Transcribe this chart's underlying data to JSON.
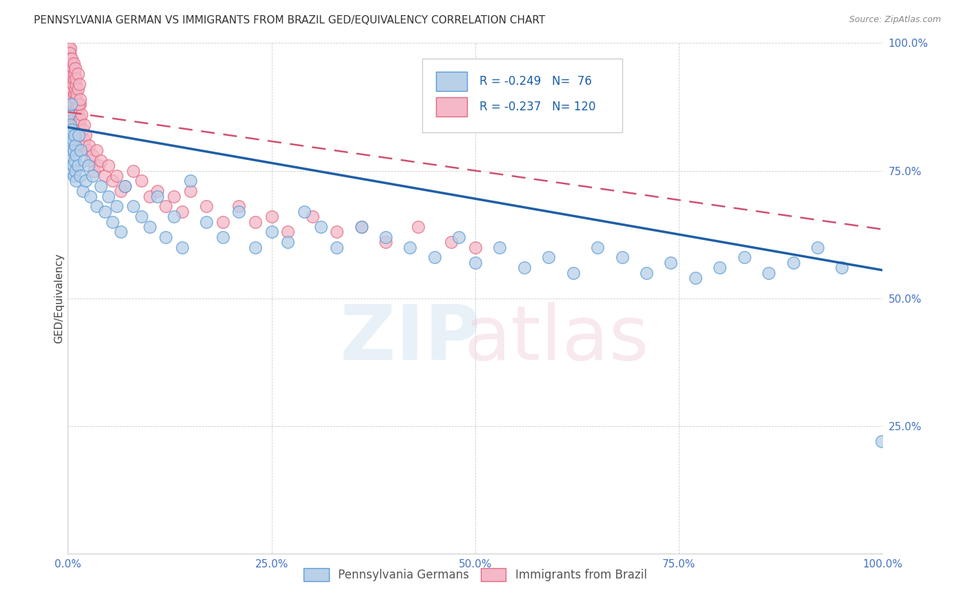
{
  "title": "PENNSYLVANIA GERMAN VS IMMIGRANTS FROM BRAZIL GED/EQUIVALENCY CORRELATION CHART",
  "source": "Source: ZipAtlas.com",
  "ylabel": "GED/Equivalency",
  "xlim": [
    0,
    1.0
  ],
  "ylim": [
    0,
    1.0
  ],
  "xticks": [
    0.0,
    0.25,
    0.5,
    0.75,
    1.0
  ],
  "xticklabels": [
    "0.0%",
    "25.0%",
    "50.0%",
    "75.0%",
    "100.0%"
  ],
  "yticks": [
    0.0,
    0.25,
    0.5,
    0.75,
    1.0
  ],
  "yticklabels": [
    "",
    "25.0%",
    "50.0%",
    "75.0%",
    "100.0%"
  ],
  "blue_R": -0.249,
  "blue_N": 76,
  "pink_R": -0.237,
  "pink_N": 120,
  "blue_color": "#b8d0e8",
  "blue_edge": "#5b9bd5",
  "pink_color": "#f4b8c8",
  "pink_edge": "#e06880",
  "line_blue": "#1f5fa6",
  "line_pink": "#d05070",
  "title_fontsize": 11,
  "source_fontsize": 9,
  "blue_line_start_y": 0.835,
  "blue_line_end_y": 0.555,
  "pink_line_start_y": 0.865,
  "pink_line_end_y": 0.635,
  "blue_scatter_x": [
    0.001,
    0.002,
    0.002,
    0.003,
    0.003,
    0.004,
    0.004,
    0.005,
    0.005,
    0.006,
    0.006,
    0.007,
    0.007,
    0.008,
    0.008,
    0.009,
    0.009,
    0.01,
    0.01,
    0.012,
    0.013,
    0.015,
    0.016,
    0.018,
    0.02,
    0.022,
    0.025,
    0.028,
    0.03,
    0.035,
    0.04,
    0.045,
    0.05,
    0.055,
    0.06,
    0.065,
    0.07,
    0.08,
    0.09,
    0.1,
    0.11,
    0.12,
    0.13,
    0.14,
    0.15,
    0.17,
    0.19,
    0.21,
    0.23,
    0.25,
    0.27,
    0.29,
    0.31,
    0.33,
    0.36,
    0.39,
    0.42,
    0.45,
    0.48,
    0.5,
    0.53,
    0.56,
    0.59,
    0.62,
    0.65,
    0.68,
    0.71,
    0.74,
    0.77,
    0.8,
    0.83,
    0.86,
    0.89,
    0.92,
    0.95,
    0.999
  ],
  "blue_scatter_y": [
    0.86,
    0.82,
    0.78,
    0.8,
    0.84,
    0.75,
    0.88,
    0.79,
    0.83,
    0.76,
    0.81,
    0.74,
    0.79,
    0.77,
    0.82,
    0.75,
    0.8,
    0.78,
    0.73,
    0.76,
    0.82,
    0.74,
    0.79,
    0.71,
    0.77,
    0.73,
    0.76,
    0.7,
    0.74,
    0.68,
    0.72,
    0.67,
    0.7,
    0.65,
    0.68,
    0.63,
    0.72,
    0.68,
    0.66,
    0.64,
    0.7,
    0.62,
    0.66,
    0.6,
    0.73,
    0.65,
    0.62,
    0.67,
    0.6,
    0.63,
    0.61,
    0.67,
    0.64,
    0.6,
    0.64,
    0.62,
    0.6,
    0.58,
    0.62,
    0.57,
    0.6,
    0.56,
    0.58,
    0.55,
    0.6,
    0.58,
    0.55,
    0.57,
    0.54,
    0.56,
    0.58,
    0.55,
    0.57,
    0.6,
    0.56,
    0.22
  ],
  "pink_scatter_x": [
    0.0005,
    0.001,
    0.001,
    0.001,
    0.001,
    0.002,
    0.002,
    0.002,
    0.002,
    0.002,
    0.003,
    0.003,
    0.003,
    0.003,
    0.003,
    0.004,
    0.004,
    0.004,
    0.004,
    0.005,
    0.005,
    0.005,
    0.005,
    0.006,
    0.006,
    0.006,
    0.006,
    0.007,
    0.007,
    0.007,
    0.007,
    0.008,
    0.008,
    0.008,
    0.009,
    0.009,
    0.009,
    0.01,
    0.01,
    0.01,
    0.011,
    0.012,
    0.012,
    0.013,
    0.013,
    0.014,
    0.015,
    0.015,
    0.016,
    0.017,
    0.018,
    0.019,
    0.02,
    0.02,
    0.022,
    0.024,
    0.026,
    0.028,
    0.03,
    0.032,
    0.035,
    0.038,
    0.04,
    0.045,
    0.05,
    0.055,
    0.06,
    0.065,
    0.07,
    0.08,
    0.09,
    0.1,
    0.11,
    0.12,
    0.13,
    0.14,
    0.15,
    0.17,
    0.19,
    0.21,
    0.23,
    0.25,
    0.27,
    0.3,
    0.33,
    0.36,
    0.39,
    0.43,
    0.47,
    0.5,
    0.001,
    0.001,
    0.002,
    0.002,
    0.002,
    0.003,
    0.003,
    0.003,
    0.004,
    0.004,
    0.005,
    0.005,
    0.005,
    0.006,
    0.006,
    0.007,
    0.007,
    0.008,
    0.008,
    0.009,
    0.009,
    0.01,
    0.01,
    0.01,
    0.011,
    0.012,
    0.012,
    0.013,
    0.014,
    0.015
  ],
  "pink_scatter_y": [
    0.99,
    0.97,
    0.94,
    0.99,
    0.96,
    0.98,
    0.95,
    0.92,
    0.97,
    0.93,
    0.99,
    0.96,
    0.93,
    0.9,
    0.97,
    0.95,
    0.92,
    0.89,
    0.94,
    0.96,
    0.93,
    0.9,
    0.87,
    0.94,
    0.91,
    0.88,
    0.85,
    0.93,
    0.9,
    0.87,
    0.84,
    0.91,
    0.88,
    0.85,
    0.89,
    0.86,
    0.83,
    0.87,
    0.84,
    0.81,
    0.88,
    0.85,
    0.82,
    0.86,
    0.83,
    0.84,
    0.88,
    0.85,
    0.82,
    0.86,
    0.83,
    0.8,
    0.84,
    0.81,
    0.82,
    0.79,
    0.8,
    0.77,
    0.78,
    0.75,
    0.79,
    0.76,
    0.77,
    0.74,
    0.76,
    0.73,
    0.74,
    0.71,
    0.72,
    0.75,
    0.73,
    0.7,
    0.71,
    0.68,
    0.7,
    0.67,
    0.71,
    0.68,
    0.65,
    0.68,
    0.65,
    0.66,
    0.63,
    0.66,
    0.63,
    0.64,
    0.61,
    0.64,
    0.61,
    0.6,
    0.95,
    0.92,
    0.98,
    0.95,
    0.91,
    0.97,
    0.94,
    0.9,
    0.96,
    0.93,
    0.97,
    0.94,
    0.91,
    0.95,
    0.92,
    0.96,
    0.93,
    0.9,
    0.94,
    0.91,
    0.95,
    0.92,
    0.89,
    0.93,
    0.9,
    0.94,
    0.91,
    0.88,
    0.92,
    0.89
  ]
}
